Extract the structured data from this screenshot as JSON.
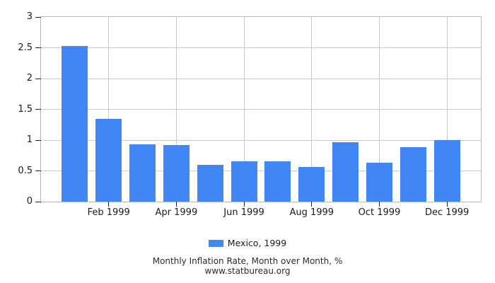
{
  "chart_data": {
    "type": "bar",
    "title": "Monthly Inflation Rate, Month over Month, %",
    "subtitle": "www.statbureau.org",
    "legend": "Mexico, 1999",
    "categories": [
      "Jan 1999",
      "Feb 1999",
      "Mar 1999",
      "Apr 1999",
      "May 1999",
      "Jun 1999",
      "Jul 1999",
      "Aug 1999",
      "Sep 1999",
      "Oct 1999",
      "Nov 1999",
      "Dec 1999"
    ],
    "values": [
      2.53,
      1.34,
      0.93,
      0.92,
      0.6,
      0.66,
      0.66,
      0.56,
      0.97,
      0.63,
      0.89,
      1.0
    ],
    "x_ticks": [
      {
        "index": 1,
        "label": "Feb 1999"
      },
      {
        "index": 3,
        "label": "Apr 1999"
      },
      {
        "index": 5,
        "label": "Jun 1999"
      },
      {
        "index": 7,
        "label": "Aug 1999"
      },
      {
        "index": 9,
        "label": "Oct 1999"
      },
      {
        "index": 11,
        "label": "Dec 1999"
      }
    ],
    "y_ticks": [
      "0",
      "0.5",
      "1",
      "1.5",
      "2",
      "2.5",
      "3"
    ],
    "ylim": [
      0,
      3
    ],
    "grid": true,
    "legend_position": "bottom-center",
    "bar_color": "#4285f4",
    "xlabel": "",
    "ylabel": ""
  }
}
